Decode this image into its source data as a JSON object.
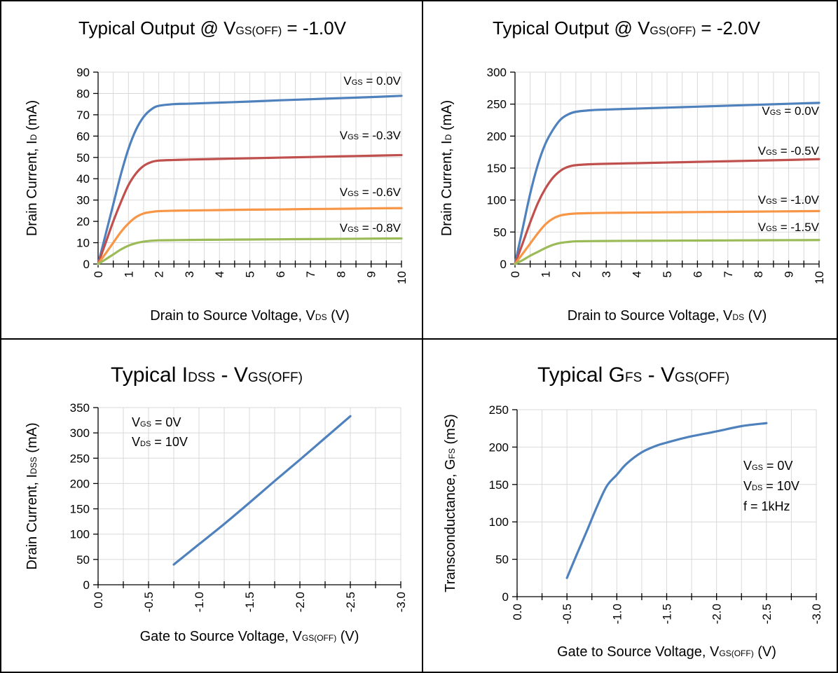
{
  "chart_data": [
    {
      "type": "line",
      "title": {
        "main": "Typical Output @ V",
        "sub": "GS(OFF)",
        "tail": " = -1.0V"
      },
      "xlabel": {
        "main": "Drain to Source Voltage, V",
        "sub": "DS",
        "tail": " (V)"
      },
      "ylabel": {
        "main": "Drain Current, I",
        "sub": "D",
        "tail": " (mA)"
      },
      "xlim": [
        0,
        10
      ],
      "ylim": [
        0,
        90
      ],
      "xticks": [
        "0",
        "1",
        "2",
        "3",
        "4",
        "5",
        "6",
        "7",
        "8",
        "9",
        "10"
      ],
      "yticks": [
        "0",
        "10",
        "20",
        "30",
        "40",
        "50",
        "60",
        "70",
        "80",
        "90"
      ],
      "grid": true,
      "series": [
        {
          "name": {
            "main": "V",
            "sub": "GS",
            "tail": " = 0.0V"
          },
          "color": "#4F81BD",
          "x": [
            0,
            0.25,
            0.5,
            0.75,
            1.0,
            1.25,
            1.5,
            1.75,
            2.0,
            2.5,
            3,
            4,
            5,
            6,
            7,
            8,
            9,
            10
          ],
          "y": [
            0,
            14,
            28,
            42,
            54,
            63,
            69,
            72.5,
            74.2,
            75,
            75.2,
            75.7,
            76.2,
            76.8,
            77.3,
            77.8,
            78.3,
            78.9
          ]
        },
        {
          "name": {
            "main": "V",
            "sub": "GS",
            "tail": " = -0.3V"
          },
          "color": "#C0504D",
          "x": [
            0,
            0.25,
            0.5,
            0.75,
            1.0,
            1.25,
            1.5,
            1.75,
            2.0,
            2.5,
            3,
            4,
            5,
            6,
            7,
            8,
            9,
            10
          ],
          "y": [
            0,
            10,
            20,
            29,
            37,
            42.5,
            46,
            47.8,
            48.5,
            48.8,
            49,
            49.3,
            49.6,
            49.9,
            50.2,
            50.5,
            50.8,
            51.1
          ]
        },
        {
          "name": {
            "main": "V",
            "sub": "GS",
            "tail": " = -0.6V"
          },
          "color": "#F79646",
          "x": [
            0,
            0.25,
            0.5,
            0.75,
            1.0,
            1.25,
            1.5,
            1.75,
            2.0,
            2.5,
            3,
            4,
            5,
            6,
            7,
            8,
            9,
            10
          ],
          "y": [
            0,
            5,
            10,
            15,
            19,
            22,
            23.7,
            24.4,
            24.8,
            25,
            25.1,
            25.3,
            25.5,
            25.6,
            25.8,
            25.9,
            26.1,
            26.2
          ]
        },
        {
          "name": {
            "main": "V",
            "sub": "GS",
            "tail": " = -0.8V"
          },
          "color": "#9BBB59",
          "x": [
            0,
            0.25,
            0.5,
            0.75,
            1.0,
            1.25,
            1.5,
            1.75,
            2.0,
            2.5,
            3,
            4,
            5,
            6,
            7,
            8,
            9,
            10
          ],
          "y": [
            0,
            2.2,
            4.5,
            6.8,
            8.6,
            9.8,
            10.5,
            10.9,
            11.1,
            11.2,
            11.3,
            11.4,
            11.5,
            11.6,
            11.7,
            11.8,
            11.9,
            12.0
          ]
        }
      ]
    },
    {
      "type": "line",
      "title": {
        "main": "Typical Output @ V",
        "sub": "GS(OFF)",
        "tail": " = -2.0V"
      },
      "xlabel": {
        "main": "Drain to Source Voltage, V",
        "sub": "DS",
        "tail": " (V)"
      },
      "ylabel": {
        "main": "Drain Current, I",
        "sub": "D",
        "tail": " (mA)"
      },
      "xlim": [
        0,
        10
      ],
      "ylim": [
        0,
        300
      ],
      "xticks": [
        "0",
        "1",
        "2",
        "3",
        "4",
        "5",
        "6",
        "7",
        "8",
        "9",
        "10"
      ],
      "yticks": [
        "0",
        "50",
        "100",
        "150",
        "200",
        "250",
        "300"
      ],
      "grid": true,
      "series": [
        {
          "name": {
            "main": "V",
            "sub": "GS",
            "tail": " = 0.0V"
          },
          "color": "#4F81BD",
          "x": [
            0,
            0.25,
            0.5,
            0.75,
            1.0,
            1.25,
            1.5,
            1.75,
            2.0,
            2.5,
            3,
            4,
            5,
            6,
            7,
            8,
            9,
            10
          ],
          "y": [
            0,
            55,
            110,
            155,
            188,
            210,
            226,
            234,
            238,
            240.5,
            241.5,
            243,
            244.5,
            246,
            247.5,
            249,
            250.5,
            252
          ]
        },
        {
          "name": {
            "main": "V",
            "sub": "GS",
            "tail": " = -0.5V"
          },
          "color": "#C0504D",
          "x": [
            0,
            0.25,
            0.5,
            0.75,
            1.0,
            1.25,
            1.5,
            1.75,
            2.0,
            2.5,
            3,
            4,
            5,
            6,
            7,
            8,
            9,
            10
          ],
          "y": [
            0,
            32,
            65,
            95,
            118,
            135,
            146,
            152,
            154.5,
            156,
            156.7,
            157.7,
            158.7,
            159.7,
            160.7,
            161.7,
            162.7,
            164
          ]
        },
        {
          "name": {
            "main": "V",
            "sub": "GS",
            "tail": " = -1.0V"
          },
          "color": "#F79646",
          "x": [
            0,
            0.25,
            0.5,
            0.75,
            1.0,
            1.25,
            1.5,
            1.75,
            2.0,
            2.5,
            3,
            4,
            5,
            6,
            7,
            8,
            9,
            10
          ],
          "y": [
            0,
            16,
            32,
            48,
            62,
            71,
            76,
            78,
            79,
            79.6,
            80,
            80.4,
            80.8,
            81.2,
            81.6,
            82,
            82.4,
            82.8
          ]
        },
        {
          "name": {
            "main": "V",
            "sub": "GS",
            "tail": " = -1.5V"
          },
          "color": "#9BBB59",
          "x": [
            0,
            0.25,
            0.5,
            0.75,
            1.0,
            1.25,
            1.5,
            1.75,
            2.0,
            2.5,
            3,
            4,
            5,
            6,
            7,
            8,
            9,
            10
          ],
          "y": [
            0,
            6,
            13,
            19,
            25,
            30,
            33,
            34.5,
            35.5,
            35.8,
            36,
            36.3,
            36.5,
            36.7,
            36.9,
            37.1,
            37.3,
            37.5
          ]
        }
      ]
    },
    {
      "type": "line",
      "title": {
        "main": "Typical I",
        "sub": "DSS",
        "tail": " - ",
        "main2": "V",
        "sub2": "GS(OFF)"
      },
      "xlabel": {
        "main": "Gate to Source Voltage, V",
        "sub": "GS(OFF)",
        "tail": " (V)"
      },
      "ylabel": {
        "main": "Drain Current, I",
        "sub": "DSS",
        "tail": " (mA)"
      },
      "xlim": [
        0,
        -3
      ],
      "ylim": [
        0,
        350
      ],
      "xticks": [
        "0.0",
        "-0.5",
        "-1.0",
        "-1.5",
        "-2.0",
        "-2.5",
        "-3.0"
      ],
      "yticks": [
        "0",
        "50",
        "100",
        "150",
        "200",
        "250",
        "300",
        "350"
      ],
      "grid": true,
      "annotations": [
        {
          "main": "V",
          "sub": "GS",
          "tail": " = 0V"
        },
        {
          "main": "V",
          "sub": "DS",
          "tail": " = 10V"
        }
      ],
      "series": [
        {
          "color": "#4F81BD",
          "x": [
            -0.75,
            -1.0,
            -1.25,
            -1.5,
            -1.75,
            -2.0,
            -2.25,
            -2.5
          ],
          "y": [
            40,
            80,
            120,
            162,
            205,
            247,
            290,
            333
          ]
        }
      ]
    },
    {
      "type": "line",
      "title": {
        "main": "Typical G",
        "sub": "FS",
        "tail": " - ",
        "main2": "V",
        "sub2": "GS(OFF)"
      },
      "xlabel": {
        "main": "Gate to Source Voltage, V",
        "sub": "GS(OFF)",
        "tail": " (V)"
      },
      "ylabel": {
        "main": "Transconductance, G",
        "sub": "FS",
        "tail": " (mS)"
      },
      "xlim": [
        0,
        -3
      ],
      "ylim": [
        0,
        250
      ],
      "xticks": [
        "0.0",
        "-0.5",
        "-1.0",
        "-1.5",
        "-2.0",
        "-2.5",
        "-3.0"
      ],
      "yticks": [
        "0",
        "50",
        "100",
        "150",
        "200",
        "250"
      ],
      "grid": true,
      "annotations": [
        {
          "main": "V",
          "sub": "GS",
          "tail": " = 0V"
        },
        {
          "main": "V",
          "sub": "DS",
          "tail": " = 10V"
        },
        {
          "main": "f = 1kHz",
          "sub": "",
          "tail": ""
        }
      ],
      "series": [
        {
          "color": "#4F81BD",
          "x": [
            -0.5,
            -0.6,
            -0.7,
            -0.8,
            -0.9,
            -1.0,
            -1.1,
            -1.25,
            -1.4,
            -1.5,
            -1.7,
            -2.0,
            -2.25,
            -2.5
          ],
          "y": [
            25,
            57,
            88,
            120,
            148,
            163,
            178,
            193,
            202,
            206,
            213,
            221,
            228,
            232
          ]
        }
      ]
    }
  ]
}
